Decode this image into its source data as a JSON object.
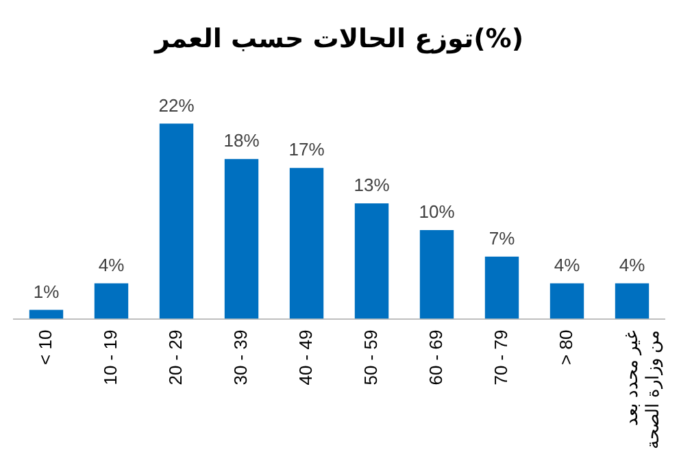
{
  "chart_data": {
    "type": "bar",
    "title": "توزع الحالات حسب العمر(%)",
    "categories": [
      "< 10",
      "10 - 19",
      "20 - 29",
      "30 - 39",
      "40 - 49",
      "50 - 59",
      "60 - 69",
      "70 - 79",
      "> 80",
      "غير محدد بعد من وزارة الصحة"
    ],
    "values": [
      1,
      4,
      22,
      18,
      17,
      13,
      10,
      7,
      4,
      4
    ],
    "value_labels": [
      "1%",
      "4%",
      "22%",
      "18%",
      "17%",
      "13%",
      "10%",
      "7%",
      "4%",
      "4%"
    ],
    "color": "#0070c0",
    "grid": false,
    "legend": false
  }
}
